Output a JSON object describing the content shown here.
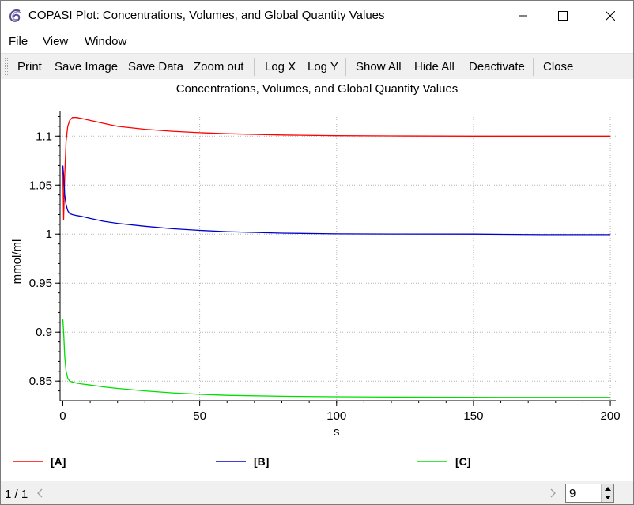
{
  "window": {
    "title": "COPASI Plot: Concentrations, Volumes, and Global Quantity Values",
    "icon": "copasi-logo-icon",
    "controls": [
      "minimize-icon",
      "maximize-icon",
      "close-icon"
    ]
  },
  "menu": {
    "file": "File",
    "view": "View",
    "window": "Window"
  },
  "toolbar": {
    "print": "Print",
    "save_image": "Save Image",
    "save_data": "Save Data",
    "zoom_out": "Zoom out",
    "log_x": "Log X",
    "log_y": "Log Y",
    "show_all": "Show All",
    "hide_all": "Hide All",
    "deactivate": "Deactivate",
    "close": "Close"
  },
  "status": {
    "page": "1 / 1",
    "spin_value": "9"
  },
  "colors": {
    "A": "#ff0000",
    "B": "#0000cc",
    "C": "#00dd00",
    "grid": "#b4b4b4"
  },
  "chart_data": {
    "type": "line",
    "title": "Concentrations, Volumes, and Global Quantity Values",
    "xlabel": "s",
    "ylabel": "mmol/ml",
    "xlim": [
      -1,
      202
    ],
    "ylim": [
      0.83,
      1.122
    ],
    "xticks": [
      0,
      50,
      100,
      150,
      200
    ],
    "yticks": [
      0.85,
      0.9,
      0.95,
      1,
      1.05,
      1.1
    ],
    "ytick_labels": [
      "0.85",
      "0.9",
      "0.95",
      "1",
      "1.05",
      "1.1"
    ],
    "grid": true,
    "legend_position": "bottom",
    "series": [
      {
        "name": "[A]",
        "color": "#ff0000",
        "x": [
          0,
          0.3,
          0.7,
          1.2,
          1.8,
          2.5,
          3.5,
          5,
          7,
          10,
          15,
          20,
          30,
          40,
          50,
          60,
          80,
          100,
          120,
          150,
          175,
          200
        ],
        "y": [
          1.07,
          1.015,
          1.06,
          1.095,
          1.11,
          1.116,
          1.119,
          1.119,
          1.118,
          1.116,
          1.113,
          1.11,
          1.107,
          1.105,
          1.1035,
          1.1025,
          1.1012,
          1.1005,
          1.1002,
          1.1,
          1.1,
          1.1
        ]
      },
      {
        "name": "[B]",
        "color": "#0000cc",
        "x": [
          0,
          0.3,
          0.7,
          1.2,
          1.8,
          2.5,
          3.5,
          5,
          7,
          10,
          15,
          20,
          30,
          40,
          50,
          60,
          80,
          100,
          120,
          150,
          175,
          200
        ],
        "y": [
          1.07,
          1.06,
          1.04,
          1.03,
          1.024,
          1.021,
          1.02,
          1.019,
          1.018,
          1.016,
          1.013,
          1.011,
          1.008,
          1.0055,
          1.0038,
          1.0025,
          1.001,
          1.0003,
          1.0001,
          1.0,
          0.9995,
          0.9995
        ]
      },
      {
        "name": "[C]",
        "color": "#00dd00",
        "x": [
          0,
          0.3,
          0.7,
          1.2,
          1.8,
          2.5,
          3.5,
          5,
          7,
          10,
          15,
          20,
          30,
          40,
          50,
          60,
          80,
          100,
          120,
          150,
          175,
          200
        ],
        "y": [
          0.913,
          0.9,
          0.875,
          0.86,
          0.853,
          0.85,
          0.849,
          0.848,
          0.847,
          0.846,
          0.844,
          0.8425,
          0.84,
          0.838,
          0.8365,
          0.8355,
          0.8345,
          0.834,
          0.8337,
          0.8335,
          0.8334,
          0.8334
        ]
      }
    ]
  }
}
